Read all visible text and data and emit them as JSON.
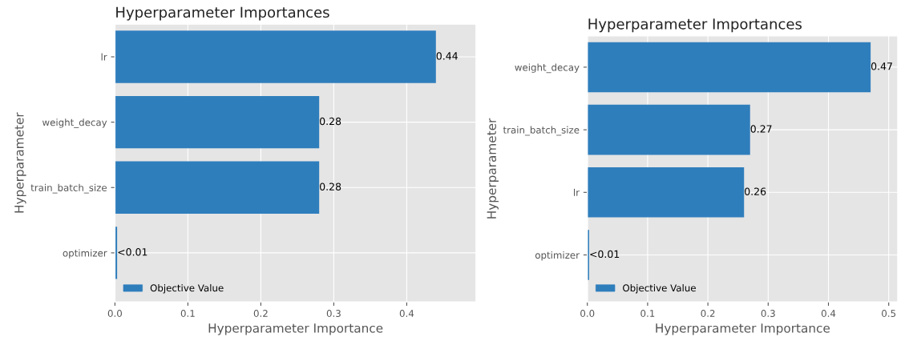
{
  "chart_data": [
    {
      "type": "bar",
      "orientation": "horizontal",
      "title": "Hyperparameter Importances",
      "xlabel": "Hyperparameter Importance",
      "ylabel": "Hyperparameter",
      "categories": [
        "lr",
        "weight_decay",
        "train_batch_size",
        "optimizer"
      ],
      "series": [
        {
          "name": "Objective Value",
          "color": "#2f7ebc",
          "values": [
            0.44,
            0.28,
            0.28,
            0.003
          ],
          "value_labels": [
            "0.44",
            "0.28",
            "0.28",
            "<0.01"
          ]
        }
      ],
      "xlim": [
        0,
        0.495
      ],
      "xticks": [
        {
          "value": 0,
          "label": "0.0"
        },
        0.1,
        0.2,
        0.3,
        0.4
      ],
      "grid": true,
      "legend": "bottom left"
    },
    {
      "type": "bar",
      "orientation": "horizontal",
      "title": "Hyperparameter Importances",
      "xlabel": "Hyperparameter Importance",
      "ylabel": "Hyperparameter",
      "categories": [
        "weight_decay",
        "train_batch_size",
        "lr",
        "optimizer"
      ],
      "series": [
        {
          "name": "Objective Value",
          "color": "#2f7ebc",
          "values": [
            0.47,
            0.27,
            0.26,
            0.003
          ],
          "value_labels": [
            "0.47",
            "0.27",
            "0.26",
            "<0.01"
          ]
        }
      ],
      "xlim": [
        0,
        0.515
      ],
      "xticks": [
        {
          "value": 0,
          "label": "0.0"
        },
        0.1,
        0.2,
        0.3,
        0.4,
        0.5
      ],
      "grid": true,
      "legend": "bottom left"
    }
  ]
}
